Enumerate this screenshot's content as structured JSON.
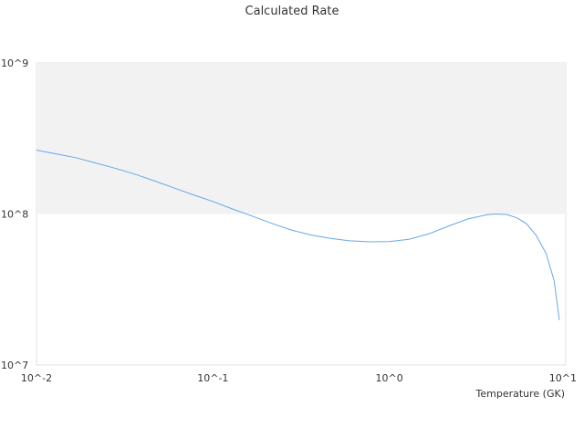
{
  "chart_data": {
    "type": "line",
    "title": "Calculated Rate",
    "xlabel": "Temperature (GK)",
    "ylabel": "",
    "x_scale": "log",
    "y_scale": "log",
    "xlim": [
      0.01,
      10
    ],
    "ylim": [
      10000000,
      1000000000
    ],
    "x_ticks": [
      {
        "value": 0.01,
        "label": "10^-2"
      },
      {
        "value": 0.1,
        "label": "10^-1"
      },
      {
        "value": 1,
        "label": "10^0"
      },
      {
        "value": 10,
        "label": "10^1"
      }
    ],
    "y_ticks": [
      {
        "value": 10000000,
        "label": "10^7"
      },
      {
        "value": 100000000,
        "label": "10^8"
      },
      {
        "value": 1000000000,
        "label": "10^9"
      }
    ],
    "band": {
      "from": 100000000,
      "to": 1000000000,
      "color": "#f2f2f2"
    },
    "grid": false,
    "legend": "none",
    "series": [
      {
        "color": "#64a8e8",
        "x": [
          0.01,
          0.0129,
          0.0167,
          0.0215,
          0.0278,
          0.0359,
          0.0464,
          0.0599,
          0.0774,
          0.1,
          0.129,
          0.167,
          0.215,
          0.278,
          0.359,
          0.464,
          0.599,
          0.774,
          1.0,
          1.29,
          1.67,
          2.15,
          2.78,
          3.59,
          4.0,
          4.64,
          5.3,
          5.99,
          6.8,
          7.74,
          8.6,
          9.2
        ],
        "y": [
          265000000,
          250000000,
          236000000,
          218000000,
          201000000,
          184000000,
          166000000,
          149000000,
          134000000,
          121000000,
          108000000,
          96900000,
          86800000,
          78300000,
          72600000,
          68900000,
          66400000,
          65400000,
          65600000,
          68000000,
          73700000,
          82900000,
          92600000,
          98900000,
          100000000,
          99200000,
          94200000,
          86000000,
          72200000,
          54700000,
          36100000,
          19800000
        ]
      }
    ]
  }
}
